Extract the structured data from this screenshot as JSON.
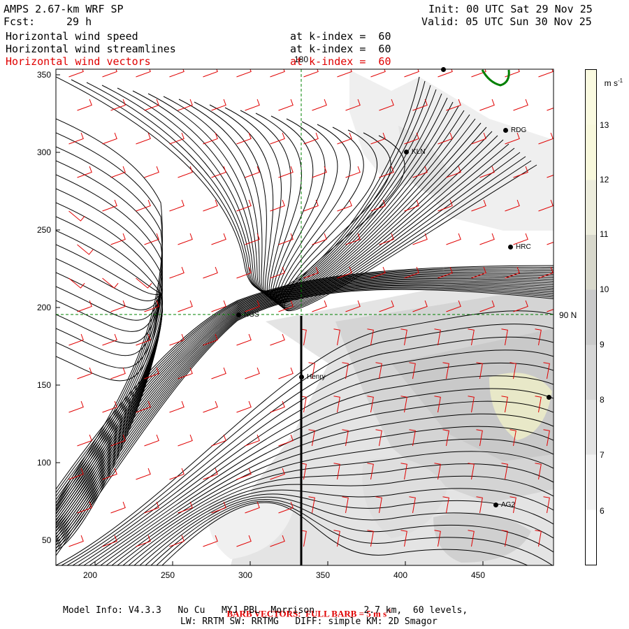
{
  "header": {
    "model_title": "AMPS 2.67-km WRF SP",
    "forecast_label": "Fcst:",
    "forecast_hours": "29 h",
    "init_label": "Init: 00 UTC Sat 29 Nov 25",
    "valid_label": "Valid: 05 UTC Sun 30 Nov 25"
  },
  "fields": [
    {
      "name": "Horizontal wind speed",
      "level": "at k-index =  60",
      "color": "#000000"
    },
    {
      "name": "Horizontal wind streamlines",
      "level": "at k-index =  60",
      "color": "#000000"
    },
    {
      "name": "Horizontal wind vectors",
      "level": "at k-index =  60",
      "color": "#e00000"
    }
  ],
  "map": {
    "x_ticks": [
      "200",
      "250",
      "300",
      "350",
      "400",
      "450"
    ],
    "y_ticks": [
      "350",
      "300",
      "250",
      "200",
      "150",
      "100",
      "50"
    ],
    "meridian_label": "180",
    "latitude_label": "90 N",
    "stations": [
      "RDG",
      "KLN",
      "HRC",
      "NGS",
      "Henry",
      "AG2"
    ],
    "streamline_color": "#000000",
    "barb_color": "#e00000",
    "coast_color": "#008000",
    "grid_color": "#008000"
  },
  "colorbar": {
    "unit": "m s",
    "unit_sup": "-1",
    "ticks": [
      "13",
      "12",
      "11",
      "10",
      "9",
      "8",
      "7",
      "6"
    ],
    "colors": [
      "#ffffff",
      "#f2f2f2",
      "#e3e3e3",
      "#d6d6d6",
      "#cacaca",
      "#d8d8cc",
      "#ececdc",
      "#f8f8dc"
    ]
  },
  "footer": {
    "barb_title": "BARB VECTORS:  FULL BARB = 5 m s",
    "barb_sup": "-1",
    "model_info_line1": "Model Info: V4.3.3   No Cu   MYJ PBL  Morrison         2.7 km,  60 levels,",
    "model_info_line2": "LW: RRTM SW: RRTMG   DIFF: simple KM: 2D Smagor"
  }
}
